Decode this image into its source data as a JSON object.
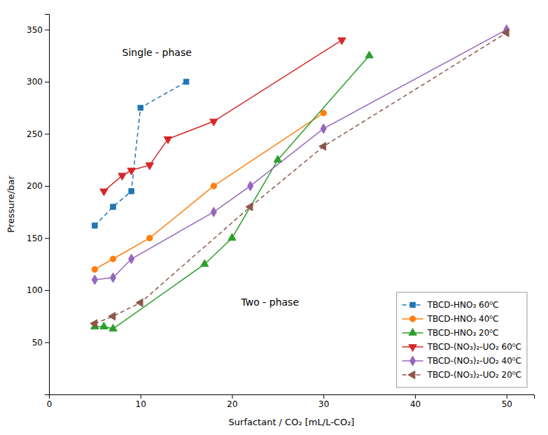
{
  "chart_data": {
    "type": "line",
    "xlabel": "Surfactant / CO₂ [mL/L-CO₂]",
    "ylabel": "Pressure/bar",
    "xlim": [
      0,
      53
    ],
    "ylim": [
      0,
      365
    ],
    "xticks": [
      0,
      10,
      20,
      30,
      40,
      50
    ],
    "yticks": [
      50,
      100,
      150,
      200,
      250,
      300,
      350
    ],
    "legend": "lower right",
    "annotations": [
      {
        "text": "Single - phase",
        "x": 8,
        "y": 325
      },
      {
        "text": "Two - phase",
        "x": 21,
        "y": 85
      }
    ],
    "series": [
      {
        "name": "TBCD-HNO₃ 60⁰C",
        "marker": "square",
        "line_style": "dashed",
        "x": [
          5,
          7,
          9,
          10,
          15
        ],
        "values": [
          162,
          180,
          195,
          275,
          300
        ]
      },
      {
        "name": "TBCD-HNO₃ 40⁰C",
        "marker": "circle",
        "line_style": "solid",
        "x": [
          5,
          7,
          11,
          18,
          30
        ],
        "values": [
          120,
          130,
          150,
          200,
          270
        ]
      },
      {
        "name": "TBCD-HNO₃ 20⁰C",
        "marker": "triangle-up",
        "line_style": "solid",
        "x": [
          5,
          6,
          7,
          17,
          20,
          25,
          35
        ],
        "values": [
          65,
          65,
          63,
          125,
          150,
          225,
          325
        ]
      },
      {
        "name": "TBCD-(NO₃)₂-UO₂ 60⁰C",
        "marker": "triangle-down",
        "line_style": "solid",
        "x": [
          6,
          8,
          9,
          11,
          13,
          18,
          32
        ],
        "values": [
          195,
          210,
          215,
          220,
          245,
          262,
          340
        ]
      },
      {
        "name": "TBCD-(NO₃)₂-UO₂ 40⁰C",
        "marker": "diamond",
        "line_style": "solid",
        "x": [
          5,
          7,
          9,
          18,
          22,
          30,
          50
        ],
        "values": [
          110,
          112,
          130,
          175,
          200,
          255,
          350
        ]
      },
      {
        "name": "TBCD-(NO₃)₂-UO₂ 20⁰C",
        "marker": "triangle-left",
        "line_style": "dashed",
        "x": [
          5,
          7,
          10,
          22,
          30,
          50
        ],
        "values": [
          68,
          75,
          88,
          180,
          238,
          347
        ]
      }
    ]
  }
}
